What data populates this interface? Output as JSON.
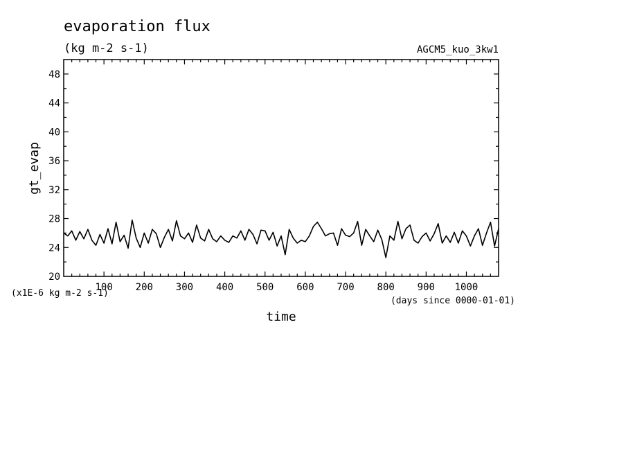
{
  "chart_data": {
    "type": "line",
    "title": "evaporation flux",
    "units_label": "(kg m-2 s-1)",
    "run_label": "AGCM5_kuo_3kw1",
    "xlabel": "time",
    "x_units": "(days since 0000-01-01)",
    "ylabel": "gt_evap",
    "y_scale_label": "(x1E-6 kg m-2 s-1)",
    "xlim": [
      0,
      1080
    ],
    "ylim": [
      20,
      50
    ],
    "x_ticks": [
      100,
      200,
      300,
      400,
      500,
      600,
      700,
      800,
      900,
      1000
    ],
    "y_ticks": [
      24,
      28,
      32,
      36,
      40,
      44,
      48
    ],
    "grid": false,
    "series": [
      {
        "x": [
          0,
          10,
          20,
          30,
          40,
          50,
          60,
          70,
          80,
          90,
          100,
          110,
          120,
          130,
          140,
          150,
          160,
          170,
          180,
          190,
          200,
          210,
          220,
          230,
          240,
          250,
          260,
          270,
          280,
          290,
          300,
          310,
          320,
          330,
          340,
          350,
          360,
          370,
          380,
          390,
          400,
          410,
          420,
          430,
          440,
          450,
          460,
          470,
          480,
          490,
          500,
          510,
          520,
          530,
          540,
          550,
          560,
          570,
          580,
          590,
          600,
          610,
          620,
          630,
          640,
          650,
          660,
          670,
          680,
          690,
          700,
          710,
          720,
          730,
          740,
          750,
          760,
          770,
          780,
          790,
          800,
          810,
          820,
          830,
          840,
          850,
          860,
          870,
          880,
          890,
          900,
          910,
          920,
          930,
          940,
          950,
          960,
          970,
          980,
          990,
          1000,
          1010,
          1020,
          1030,
          1040,
          1050,
          1060,
          1070,
          1080
        ],
        "values": [
          26.0,
          25.6,
          26.3,
          25.0,
          26.2,
          25.2,
          26.5,
          25.0,
          24.3,
          25.8,
          24.6,
          26.6,
          24.5,
          27.5,
          24.8,
          25.7,
          23.9,
          27.8,
          25.3,
          24.0,
          26.0,
          24.6,
          26.5,
          25.9,
          24.0,
          25.4,
          26.5,
          24.9,
          27.7,
          25.6,
          25.2,
          26.0,
          24.7,
          27.1,
          25.3,
          24.9,
          26.5,
          25.2,
          24.8,
          25.6,
          25.0,
          24.7,
          25.6,
          25.3,
          26.3,
          25.0,
          26.5,
          25.8,
          24.5,
          26.4,
          26.3,
          25.0,
          26.1,
          24.2,
          25.6,
          23.0,
          26.5,
          25.3,
          24.6,
          25.0,
          24.8,
          25.6,
          26.9,
          27.5,
          26.6,
          25.6,
          25.9,
          26.0,
          24.3,
          26.6,
          25.7,
          25.5,
          26.0,
          27.6,
          24.3,
          26.5,
          25.6,
          24.8,
          26.4,
          25.1,
          22.6,
          25.6,
          25.0,
          27.6,
          25.2,
          26.6,
          27.1,
          25.0,
          24.6,
          25.5,
          26.0,
          24.9,
          25.9,
          27.3,
          24.6,
          25.6,
          24.7,
          26.1,
          24.6,
          26.3,
          25.6,
          24.2,
          25.6,
          26.6,
          24.3,
          26.0,
          27.5,
          24.2,
          26.6
        ]
      }
    ]
  }
}
